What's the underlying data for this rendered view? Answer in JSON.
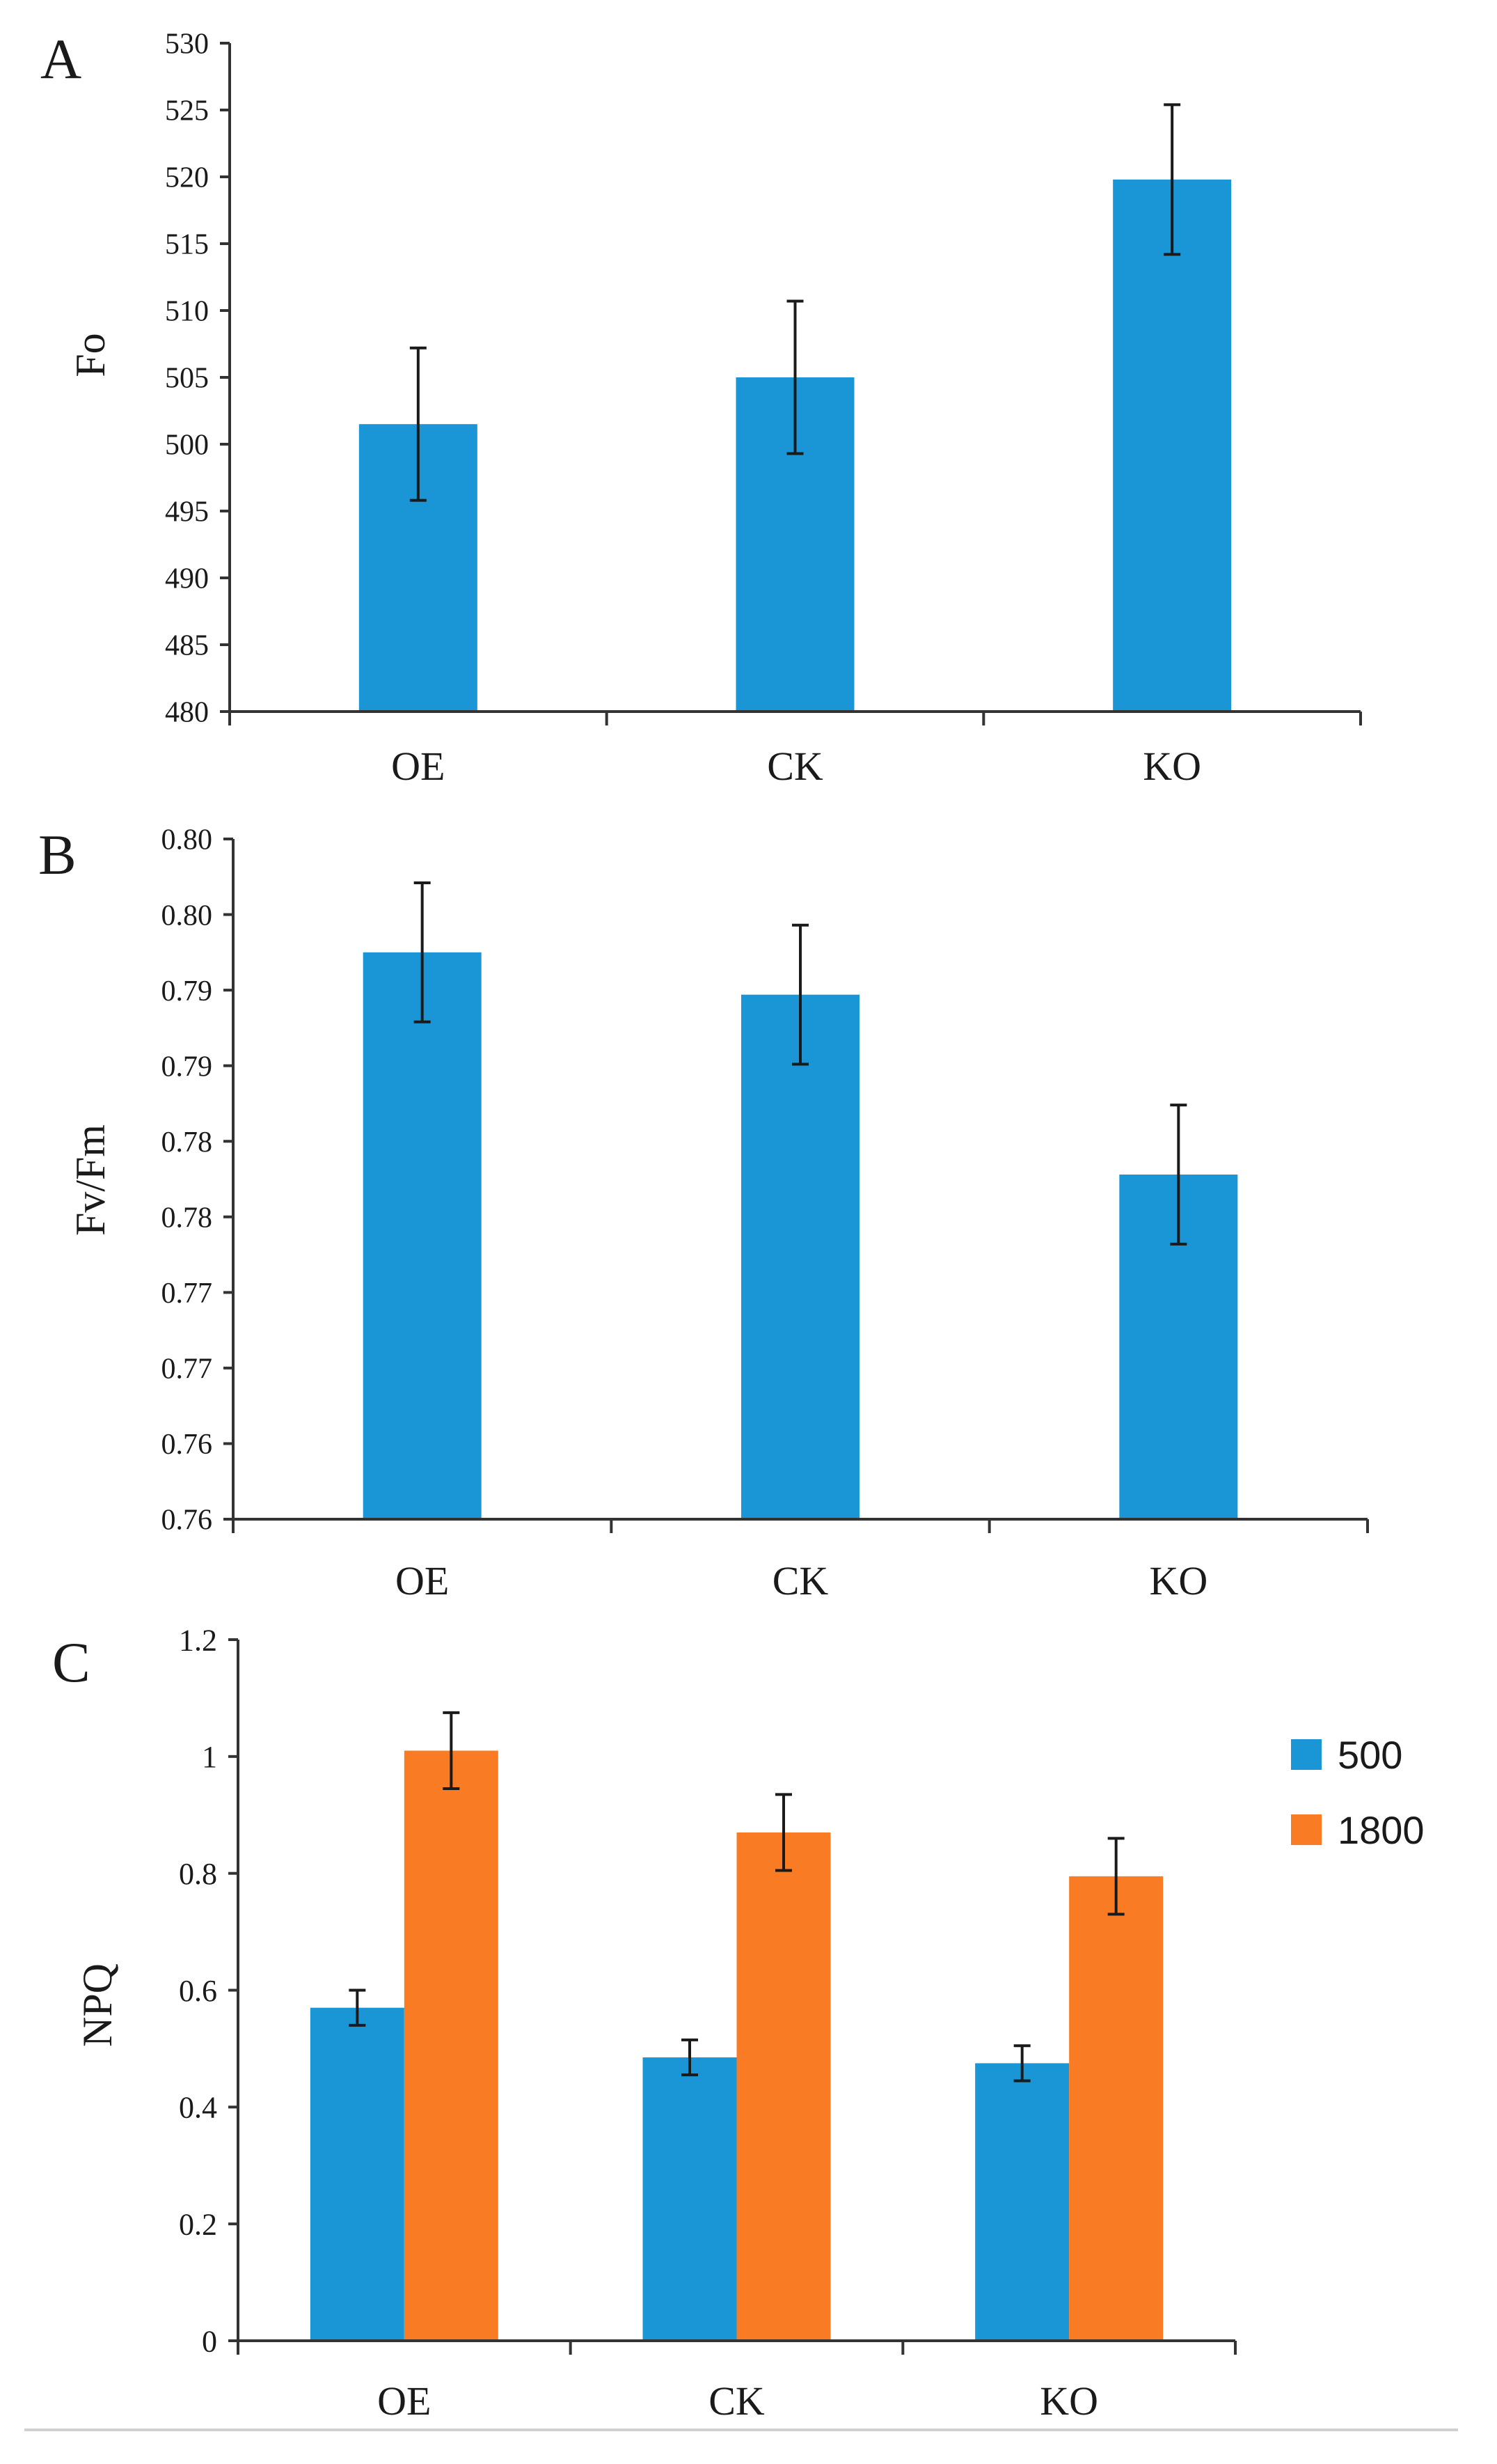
{
  "colors": {
    "series_500": "#1a96d6",
    "series_1800": "#f97c24",
    "axis": "#333333",
    "background": "#ffffff"
  },
  "chart_data": [
    {
      "panel": "A",
      "type": "bar",
      "ylabel": "Fo",
      "xlabel": "",
      "categories": [
        "OE",
        "CK",
        "KO"
      ],
      "series": [
        {
          "name": "Fo",
          "values": [
            501.5,
            505.0,
            519.8
          ],
          "errors": [
            5.7,
            5.7,
            5.6
          ]
        }
      ],
      "ylim": [
        480,
        530
      ],
      "yticks": [
        480,
        485,
        490,
        495,
        500,
        505,
        510,
        515,
        520,
        525,
        530
      ],
      "ytick_labels": [
        "480",
        "485",
        "490",
        "495",
        "500",
        "505",
        "510",
        "515",
        "520",
        "525",
        "530"
      ],
      "legend": false
    },
    {
      "panel": "B",
      "type": "bar",
      "ylabel": "Fv/Fm",
      "xlabel": "",
      "categories": [
        "OE",
        "CK",
        "KO"
      ],
      "series": [
        {
          "name": "Fv/Fm",
          "values": [
            0.7925,
            0.7897,
            0.7778
          ],
          "errors": [
            0.0046,
            0.0046,
            0.0046
          ]
        }
      ],
      "ylim": [
        0.755,
        0.8
      ],
      "yticks": [
        0.755,
        0.76,
        0.765,
        0.77,
        0.775,
        0.78,
        0.785,
        0.79,
        0.795,
        0.8
      ],
      "ytick_labels": [
        "0.76",
        "0.76",
        "0.77",
        "0.77",
        "0.78",
        "0.78",
        "0.79",
        "0.79",
        "0.80",
        "0.80"
      ],
      "legend": false
    },
    {
      "panel": "C",
      "type": "bar",
      "ylabel": "NPQ",
      "xlabel": "",
      "categories": [
        "OE",
        "CK",
        "KO"
      ],
      "series": [
        {
          "name": "500",
          "values": [
            0.57,
            0.485,
            0.475
          ],
          "errors": [
            0.03,
            0.03,
            0.03
          ]
        },
        {
          "name": "1800",
          "values": [
            1.01,
            0.87,
            0.795
          ],
          "errors": [
            0.065,
            0.065,
            0.065
          ]
        }
      ],
      "ylim": [
        0,
        1.2
      ],
      "yticks": [
        0,
        0.2,
        0.4,
        0.6,
        0.8,
        1.0,
        1.2
      ],
      "ytick_labels": [
        "0",
        "0.2",
        "0.4",
        "0.6",
        "0.8",
        "1",
        "1.2"
      ],
      "legend": true,
      "legend_position": "top-right"
    }
  ]
}
